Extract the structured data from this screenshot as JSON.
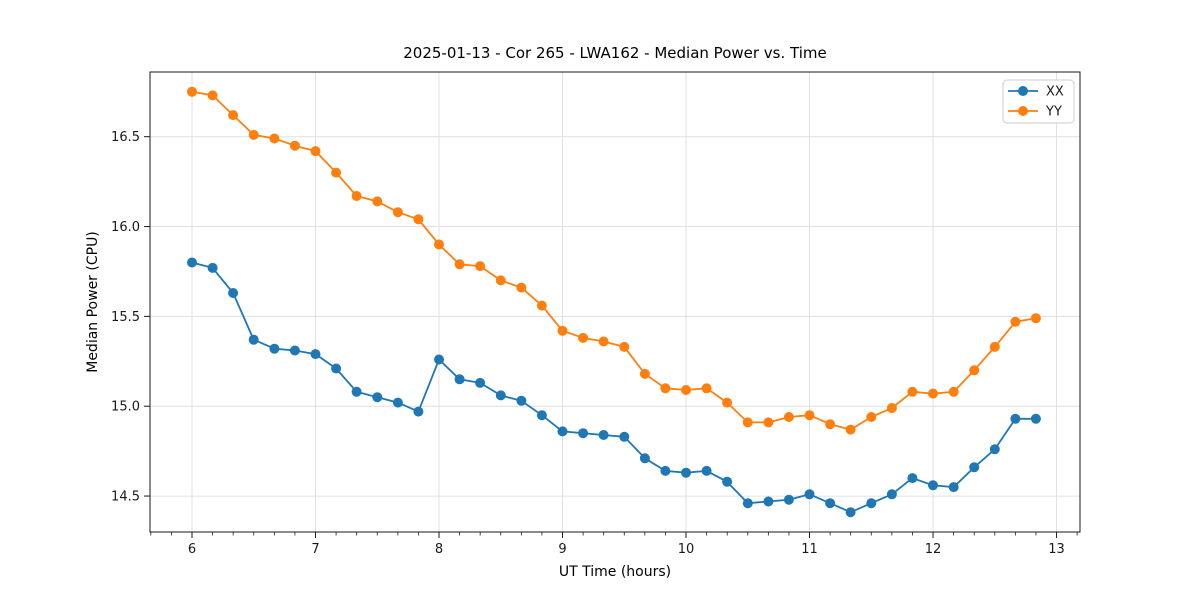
{
  "figure": {
    "background": "#ffffff",
    "spine_color": "#1a1a1a",
    "grid_color": "#e0e0e0"
  },
  "chart_data": {
    "type": "line",
    "title": "2025-01-13 - Cor 265 - LWA162 - Median Power vs. Time",
    "xlabel": "UT Time (hours)",
    "ylabel": "Median Power (CPU)",
    "xlim": [
      5.66,
      13.19
    ],
    "ylim": [
      14.3,
      16.86
    ],
    "xticks": [
      6,
      7,
      8,
      9,
      10,
      11,
      12,
      13
    ],
    "xtick_labels": [
      "6",
      "7",
      "8",
      "9",
      "10",
      "11",
      "12",
      "13"
    ],
    "yticks": [
      14.5,
      15.0,
      15.5,
      16.0,
      16.5
    ],
    "ytick_labels": [
      "14.5",
      "15.0",
      "15.5",
      "16.0",
      "16.5"
    ],
    "x_minor_step_hours": 0.1667,
    "grid": true,
    "legend_position": "upper right",
    "x": [
      6.0,
      6.167,
      6.333,
      6.5,
      6.667,
      6.833,
      7.0,
      7.167,
      7.333,
      7.5,
      7.667,
      7.833,
      8.0,
      8.167,
      8.333,
      8.5,
      8.667,
      8.833,
      9.0,
      9.167,
      9.333,
      9.5,
      9.667,
      9.833,
      10.0,
      10.167,
      10.333,
      10.5,
      10.667,
      10.833,
      11.0,
      11.167,
      11.333,
      11.5,
      11.667,
      11.833,
      12.0,
      12.167,
      12.333,
      12.5,
      12.667,
      12.833
    ],
    "series": [
      {
        "name": "XX",
        "color": "#1f77b4",
        "values": [
          15.8,
          15.77,
          15.63,
          15.37,
          15.32,
          15.31,
          15.29,
          15.21,
          15.08,
          15.05,
          15.02,
          14.97,
          15.26,
          15.15,
          15.13,
          15.06,
          15.03,
          14.95,
          14.86,
          14.85,
          14.84,
          14.83,
          14.71,
          14.64,
          14.63,
          14.64,
          14.58,
          14.46,
          14.47,
          14.48,
          14.51,
          14.46,
          14.41,
          14.46,
          14.51,
          14.6,
          14.56,
          14.55,
          14.66,
          14.76,
          14.93,
          14.93
        ]
      },
      {
        "name": "YY",
        "color": "#ff7f0e",
        "values": [
          16.75,
          16.73,
          16.62,
          16.51,
          16.49,
          16.45,
          16.42,
          16.3,
          16.17,
          16.14,
          16.08,
          16.04,
          15.9,
          15.79,
          15.78,
          15.7,
          15.66,
          15.56,
          15.42,
          15.38,
          15.36,
          15.33,
          15.18,
          15.1,
          15.09,
          15.1,
          15.02,
          14.91,
          14.91,
          14.94,
          14.95,
          14.9,
          14.87,
          14.94,
          14.99,
          15.08,
          15.07,
          15.08,
          15.2,
          15.33,
          15.47,
          15.49
        ]
      }
    ]
  }
}
